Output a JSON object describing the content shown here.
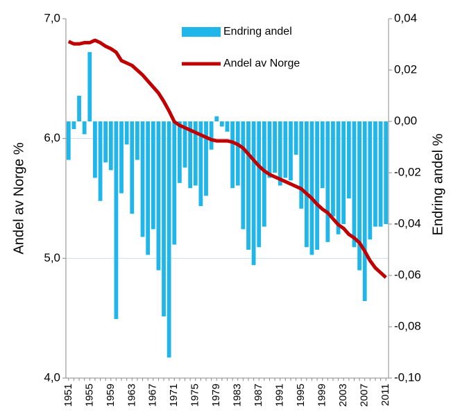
{
  "chart_data": {
    "type": "bar_line",
    "y_label": "Andel av Norge %",
    "y2_label": "Endring andel %",
    "categories": [
      "1951",
      null,
      null,
      null,
      "1955",
      null,
      null,
      null,
      "1959",
      null,
      null,
      null,
      "1963",
      null,
      null,
      null,
      "1967",
      null,
      null,
      null,
      "1971",
      null,
      null,
      null,
      "1975",
      null,
      null,
      null,
      "1979",
      null,
      null,
      null,
      "1983",
      null,
      null,
      null,
      "1987",
      null,
      null,
      null,
      "1991",
      null,
      null,
      null,
      "1995",
      null,
      null,
      null,
      "1999",
      null,
      null,
      null,
      "2003",
      null,
      null,
      null,
      "2007",
      null,
      null,
      null,
      "2011"
    ],
    "series": [
      {
        "name": "Endring andel",
        "type": "bar",
        "axis": "y2",
        "color": "#21b6ea",
        "values": [
          -0.015,
          -0.003,
          0.01,
          -0.005,
          0.027,
          -0.022,
          -0.031,
          -0.016,
          -0.019,
          -0.077,
          -0.028,
          -0.009,
          -0.036,
          -0.015,
          -0.045,
          -0.052,
          -0.042,
          -0.058,
          -0.076,
          -0.092,
          -0.048,
          -0.024,
          -0.018,
          -0.026,
          -0.025,
          -0.033,
          -0.029,
          -0.011,
          0.002,
          -0.002,
          -0.004,
          -0.026,
          -0.025,
          -0.042,
          -0.05,
          -0.056,
          -0.049,
          -0.041,
          -0.022,
          -0.02,
          -0.025,
          -0.022,
          -0.023,
          -0.013,
          -0.034,
          -0.049,
          -0.052,
          -0.05,
          -0.026,
          -0.047,
          -0.037,
          -0.044,
          -0.04,
          -0.03,
          -0.049,
          -0.058,
          -0.07,
          -0.046,
          -0.041,
          -0.041,
          -0.04
        ]
      },
      {
        "name": "Andel av Norge",
        "type": "line",
        "axis": "y",
        "color": "#c00000",
        "values": [
          6.81,
          6.79,
          6.79,
          6.8,
          6.8,
          6.82,
          6.8,
          6.77,
          6.75,
          6.72,
          6.65,
          6.63,
          6.61,
          6.57,
          6.53,
          6.48,
          6.43,
          6.38,
          6.31,
          6.23,
          6.14,
          6.11,
          6.09,
          6.07,
          6.05,
          6.03,
          6.01,
          5.99,
          5.98,
          5.98,
          5.98,
          5.97,
          5.95,
          5.92,
          5.87,
          5.82,
          5.77,
          5.73,
          5.7,
          5.68,
          5.66,
          5.64,
          5.62,
          5.6,
          5.58,
          5.54,
          5.5,
          5.45,
          5.41,
          5.38,
          5.33,
          5.28,
          5.25,
          5.2,
          5.17,
          5.13,
          5.06,
          4.98,
          4.92,
          4.88,
          4.84
        ]
      }
    ],
    "ylim": [
      4,
      7
    ],
    "yticks": [
      {
        "value": 4,
        "label": "4,0"
      },
      {
        "value": 5,
        "label": "5,0"
      },
      {
        "value": 6,
        "label": "6,0"
      },
      {
        "value": 7,
        "label": "7,0"
      }
    ],
    "y2lim": [
      -0.1,
      0.04
    ],
    "y2ticks": [
      {
        "value": -0.1,
        "label": "-0,10"
      },
      {
        "value": -0.08,
        "label": "-0,08"
      },
      {
        "value": -0.06,
        "label": "-0,06"
      },
      {
        "value": -0.04,
        "label": "-0,04"
      },
      {
        "value": -0.02,
        "label": "-0,02"
      },
      {
        "value": 0,
        "label": "0,00"
      },
      {
        "value": 0.02,
        "label": "0,02"
      },
      {
        "value": 0.04,
        "label": "0,04"
      }
    ],
    "grid": true,
    "legend": "top"
  }
}
